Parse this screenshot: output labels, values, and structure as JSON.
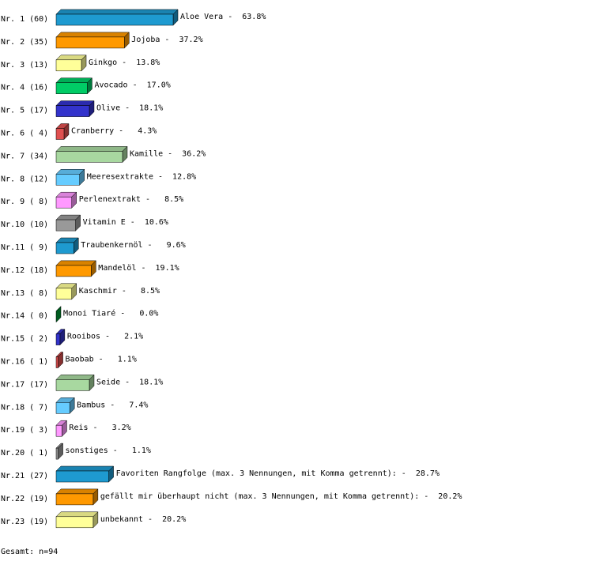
{
  "chart_data": {
    "type": "bar3d",
    "row_labels": [
      "Nr. 1 (60)",
      "Nr. 2 (35)",
      "Nr. 3 (13)",
      "Nr. 4 (16)",
      "Nr. 5 (17)",
      "Nr. 6 ( 4)",
      "Nr. 7 (34)",
      "Nr. 8 (12)",
      "Nr. 9 ( 8)",
      "Nr.10 (10)",
      "Nr.11 ( 9)",
      "Nr.12 (18)",
      "Nr.13 ( 8)",
      "Nr.14 ( 0)",
      "Nr.15 ( 2)",
      "Nr.16 ( 1)",
      "Nr.17 (17)",
      "Nr.18 ( 7)",
      "Nr.19 ( 3)",
      "Nr.20 ( 1)",
      "Nr.21 (27)",
      "Nr.22 (19)",
      "Nr.23 (19)"
    ],
    "categories": [
      "Aloe Vera",
      "Jojoba",
      "Ginkgo",
      "Avocado",
      "Olive",
      "Cranberry",
      "Kamille",
      "Meeresextrakte",
      "Perlenextrakt",
      "Vitamin E",
      "Traubenkernöl",
      "Mandelöl",
      "Kaschmir",
      "Monoi Tiaré",
      "Rooibos",
      "Baobab",
      "Seide",
      "Bambus",
      "Reis",
      "sonstiges",
      "Favoriten Rangfolge (max. 3 Nennungen, mit Komma getrennt):",
      "gefällt mir überhaupt nicht (max. 3 Nennungen, mit Komma getrennt):",
      "unbekannt"
    ],
    "values": [
      63.8,
      37.2,
      13.8,
      17.0,
      18.1,
      4.3,
      36.2,
      12.8,
      8.5,
      10.6,
      9.6,
      19.1,
      8.5,
      0.0,
      2.1,
      1.1,
      18.1,
      7.4,
      3.2,
      1.1,
      28.7,
      20.2,
      20.2
    ],
    "value_labels": [
      "-  63.8%",
      "-  37.2%",
      "-  13.8%",
      "-  17.0%",
      "-  18.1%",
      "-   4.3%",
      "-  36.2%",
      "-  12.8%",
      "-   8.5%",
      "-  10.6%",
      "-   9.6%",
      "-  19.1%",
      "-   8.5%",
      "-   0.0%",
      "-   2.1%",
      "-   1.1%",
      "-  18.1%",
      "-   7.4%",
      "-   3.2%",
      "-   1.1%",
      "-  28.7%",
      "-  20.2%",
      "-  20.2%"
    ],
    "colors": [
      "#1e9ad0",
      "#ff9900",
      "#ffff99",
      "#00cc66",
      "#3333cc",
      "#e05050",
      "#a8d8a0",
      "#66ccff",
      "#ff99ff",
      "#999999",
      "#1e9ad0",
      "#ff9900",
      "#ffff99",
      "#009933",
      "#3333cc",
      "#e05050",
      "#a8d8a0",
      "#66ccff",
      "#ff99ff",
      "#999999",
      "#1e9ad0",
      "#ff9900",
      "#ffff99"
    ],
    "footer": "Gesamt: n=94"
  }
}
